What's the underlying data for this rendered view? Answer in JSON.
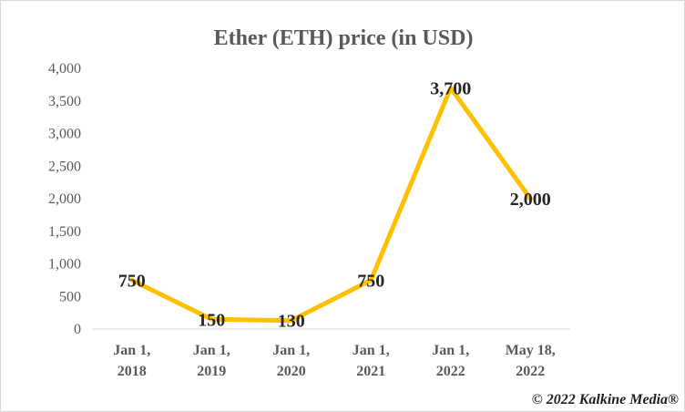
{
  "credit": "© 2022 Kalkine Media®",
  "chart_data": {
    "type": "line",
    "title": "Ether (ETH)  price (in USD)",
    "xlabel": "",
    "ylabel": "",
    "categories": [
      [
        "Jan 1,",
        "2018"
      ],
      [
        "Jan 1,",
        "2019"
      ],
      [
        "Jan 1,",
        "2020"
      ],
      [
        "Jan 1,",
        "2021"
      ],
      [
        "Jan 1,",
        "2022"
      ],
      [
        "May 18,",
        "2022"
      ]
    ],
    "series": [
      {
        "values": [
          750,
          150,
          130,
          750,
          3700,
          2000
        ],
        "labels": [
          "750",
          "150",
          "130",
          "750",
          "3,700",
          "2,000"
        ],
        "color": "#FFC000"
      }
    ],
    "ylim": [
      0,
      4000
    ],
    "yticks": [
      0,
      500,
      1000,
      1500,
      2000,
      2500,
      3000,
      3500,
      4000
    ],
    "ytick_labels": [
      "0",
      "500",
      "1,000",
      "1,500",
      "2,000",
      "2,500",
      "3,000",
      "3,500",
      "4,000"
    ],
    "grid": false,
    "legend": "none"
  }
}
